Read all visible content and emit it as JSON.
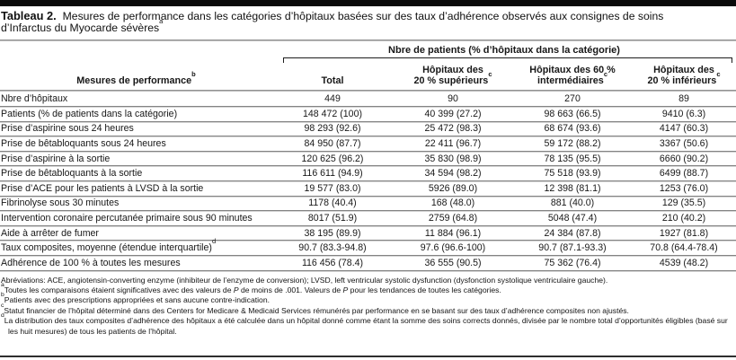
{
  "title": {
    "label": "Tableau 2.",
    "line1": "Mesures de performance dans les catégories d’hôpitaux basées sur des taux d’adhérence observés aux consignes de soins",
    "line2": "d’Infarctus du Myocarde sévères",
    "sup": "a"
  },
  "table": {
    "spanner": "Nbre de patients (% d’hôpitaux dans la catégorie)",
    "col_headers": {
      "measures": {
        "text": "Mesures de performance",
        "sup": "b"
      },
      "total": "Total",
      "top20": {
        "line1": "Hôpitaux des",
        "line2": "20 % supérieurs",
        "sup": "c"
      },
      "mid60": {
        "line1": "Hôpitaux des 60 %",
        "line2": "intermédiaires",
        "sup": "c"
      },
      "low20": {
        "line1": "Hôpitaux des",
        "line2": "20 % inférieurs",
        "sup": "c"
      }
    },
    "rows": [
      {
        "label": "Nbre d’hôpitaux",
        "values": [
          "449",
          "90",
          "270",
          "89"
        ]
      },
      {
        "label": "Patients (% de patients dans la catégorie)",
        "values": [
          "148 472 (100)",
          "40 399 (27.2)",
          "98 663 (66.5)",
          "9410 (6.3)"
        ]
      },
      {
        "label": "Prise d’aspirine sous 24 heures",
        "values": [
          "98 293 (92.6)",
          "25 472 (98.3)",
          "68 674 (93.6)",
          "4147 (60.3)"
        ]
      },
      {
        "label": "Prise de bêtabloquants sous 24 heures",
        "values": [
          "84 950 (87.7)",
          "22 411 (96.7)",
          "59 172 (88.2)",
          "3367 (50.6)"
        ]
      },
      {
        "label": "Prise d’aspirine à la sortie",
        "values": [
          "120 625 (96.2)",
          "35 830 (98.9)",
          "78 135 (95.5)",
          "6660 (90.2)"
        ]
      },
      {
        "label": "Prise de bêtabloquants à la sortie",
        "values": [
          "116 611 (94.9)",
          "34 594 (98.2)",
          "75 518 (93.9)",
          "6499 (88.7)"
        ]
      },
      {
        "label": "Prise d’ACE pour les patients à LVSD à la sortie",
        "values": [
          "19 577 (83.0)",
          "5926 (89.0)",
          "12 398 (81.1)",
          "1253 (76.0)"
        ]
      },
      {
        "label": "Fibrinolyse sous 30 minutes",
        "values": [
          "1178 (40.4)",
          "168 (48.0)",
          "881 (40.0)",
          "129 (35.5)"
        ]
      },
      {
        "label": "Intervention coronaire percutanée primaire sous 90 minutes",
        "values": [
          "8017 (51.9)",
          "2759 (64.8)",
          "5048 (47.4)",
          "210 (40.2)"
        ]
      },
      {
        "label": "Aide à arrêter de fumer",
        "values": [
          "38 195 (89.9)",
          "11 884 (96.1)",
          "24 384 (87.8)",
          "1927 (81.8)"
        ]
      },
      {
        "label": "Taux composites, moyenne (étendue interquartile)",
        "label_sup": "d",
        "values": [
          "90.7 (83.3-94.8)",
          "97.6 (96.6-100)",
          "90.7 (87.1-93.3)",
          "70.8 (64.4-78.4)"
        ]
      },
      {
        "label": "Adhérence de 100 % à toutes les mesures",
        "values": [
          "116 456 (78.4)",
          "36 555 (90.5)",
          "75 362 (76.4)",
          "4539 (48.2)"
        ]
      }
    ]
  },
  "footnotes": {
    "abbrev": "Abréviations: ACE, angiotensin-converting enzyme (inhibiteur de l’enzyme de conversion); LVSD, left ventricular systolic dysfunction (dysfonction systolique ventriculaire gauche).",
    "a": {
      "marker": "a",
      "seg1": "Toutes les comparaisons étaient significatives avec des valeurs de ",
      "p1": "P",
      "seg2": " de moins de .001. Valeurs de ",
      "p2": "P",
      "seg3": " pour les tendances de toutes les catégories."
    },
    "b": {
      "marker": "b",
      "text": "Patients avec des prescriptions appropriées et sans aucune contre-indication."
    },
    "c": {
      "marker": "c",
      "text": "Statut financier de l’hôpital déterminé dans des Centers for Medicare & Medicaid Services rémunérés par performance en se basant sur des taux d’adhérence composites non ajustés."
    },
    "d": {
      "marker": "d",
      "text": "La distribution des taux composites d’adhérence des hôpitaux a été calculée dans un hôpital donné comme étant la somme des soins corrects donnés, divisée par le nombre total d’opportunités éligibles (basé sur les huit mesures) de tous les patients de l’hôpital."
    }
  }
}
